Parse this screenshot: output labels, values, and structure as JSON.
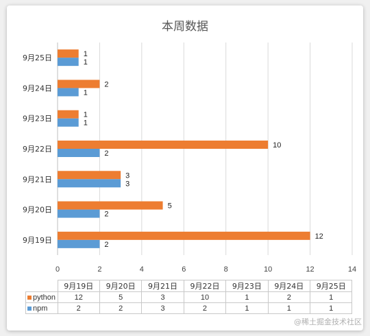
{
  "chart_data": {
    "type": "bar",
    "orientation": "horizontal",
    "title": "本周数据",
    "categories": [
      "9月19日",
      "9月20日",
      "9月21日",
      "9月22日",
      "9月23日",
      "9月24日",
      "9月25日"
    ],
    "series": [
      {
        "name": "python",
        "values": [
          12,
          5,
          3,
          10,
          1,
          2,
          1
        ],
        "color": "#ED7D31"
      },
      {
        "name": "npm",
        "values": [
          2,
          2,
          3,
          2,
          1,
          1,
          1
        ],
        "color": "#5B9BD5"
      }
    ],
    "xlim": [
      0,
      14
    ],
    "x_ticks": [
      0,
      2,
      4,
      6,
      8,
      10,
      12,
      14
    ],
    "grid": true,
    "data_labels": true,
    "data_table": true
  },
  "watermark": "@稀土掘金技术社区"
}
